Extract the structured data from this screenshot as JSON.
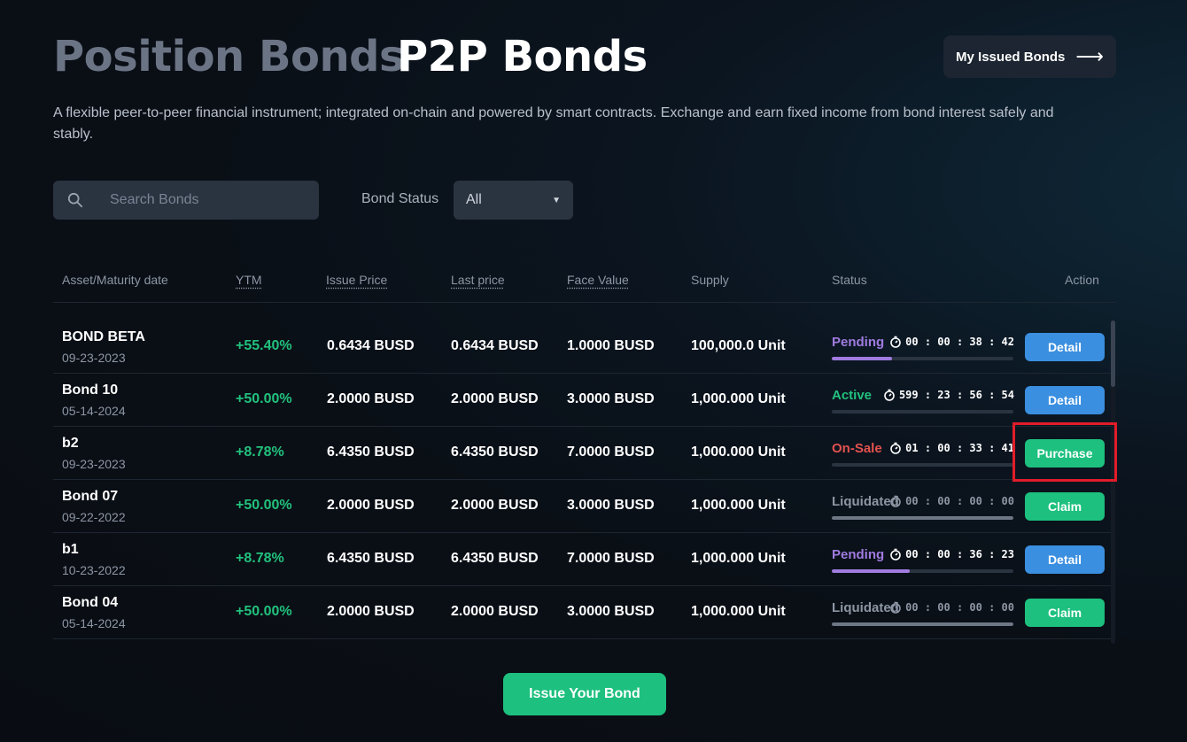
{
  "tabs": {
    "position": "Position Bonds",
    "p2p": "P2P Bonds"
  },
  "header": {
    "my_issued_label": "My Issued Bonds",
    "arrow_icon": "arrow-right-icon"
  },
  "description": "A flexible peer-to-peer financial instrument; integrated on-chain and powered by smart contracts. Exchange and earn fixed income from bond interest safely and stably.",
  "search": {
    "placeholder": "Search Bonds",
    "icon": "search-icon"
  },
  "filter": {
    "label": "Bond Status",
    "selected": "All"
  },
  "columns": {
    "asset": "Asset/Maturity date",
    "ytm": "YTM",
    "issue_price": "Issue Price",
    "last_price": "Last price",
    "face_value": "Face Value",
    "supply": "Supply",
    "status": "Status",
    "action": "Action"
  },
  "colors": {
    "pending": "#a07be0",
    "active": "#22c17d",
    "onsale": "#e3514f",
    "liquidated": "#8d96a4",
    "ytm": "#22c17d",
    "detail_button": "#3b8fe0",
    "green_button": "#1dc07e",
    "highlight": "#e11d2a"
  },
  "rows": [
    {
      "name": "BOND BETA",
      "date": "09-23-2023",
      "ytm": "+55.40%",
      "issue_price": "0.6434 BUSD",
      "last_price": "0.6434 BUSD",
      "face_value": "1.0000 BUSD",
      "supply": "100,000.0 Unit",
      "status": "Pending",
      "status_kind": "pending",
      "timer": "00 : 00 : 38 : 42",
      "progress": 0.33,
      "action": "Detail"
    },
    {
      "name": "Bond 10",
      "date": "05-14-2024",
      "ytm": "+50.00%",
      "issue_price": "2.0000 BUSD",
      "last_price": "2.0000 BUSD",
      "face_value": "3.0000 BUSD",
      "supply": "1,000.000 Unit",
      "status": "Active",
      "status_kind": "active",
      "timer": "599 : 23 : 56 : 54",
      "progress": 0,
      "action": "Detail"
    },
    {
      "name": "b2",
      "date": "09-23-2023",
      "ytm": "+8.78%",
      "issue_price": "6.4350 BUSD",
      "last_price": "6.4350 BUSD",
      "face_value": "7.0000 BUSD",
      "supply": "1,000.000 Unit",
      "status": "On-Sale",
      "status_kind": "onsale",
      "timer": "01 : 00 : 33 : 41",
      "progress": 0,
      "action": "Purchase"
    },
    {
      "name": "Bond 07",
      "date": "09-22-2022",
      "ytm": "+50.00%",
      "issue_price": "2.0000 BUSD",
      "last_price": "2.0000 BUSD",
      "face_value": "3.0000 BUSD",
      "supply": "1,000.000 Unit",
      "status": "Liquidated",
      "status_kind": "liquidated",
      "timer": "00 : 00 : 00 : 00",
      "progress": 1,
      "action": "Claim"
    },
    {
      "name": "b1",
      "date": "10-23-2022",
      "ytm": "+8.78%",
      "issue_price": "6.4350 BUSD",
      "last_price": "6.4350 BUSD",
      "face_value": "7.0000 BUSD",
      "supply": "1,000.000 Unit",
      "status": "Pending",
      "status_kind": "pending",
      "timer": "00 : 00 : 36 : 23",
      "progress": 0.43,
      "action": "Detail"
    },
    {
      "name": "Bond 04",
      "date": "05-14-2024",
      "ytm": "+50.00%",
      "issue_price": "2.0000 BUSD",
      "last_price": "2.0000 BUSD",
      "face_value": "3.0000 BUSD",
      "supply": "1,000.000 Unit",
      "status": "Liquidated",
      "status_kind": "liquidated",
      "timer": "00 : 00 : 00 : 00",
      "progress": 1,
      "action": "Claim"
    }
  ],
  "issue_button": "Issue Your Bond"
}
